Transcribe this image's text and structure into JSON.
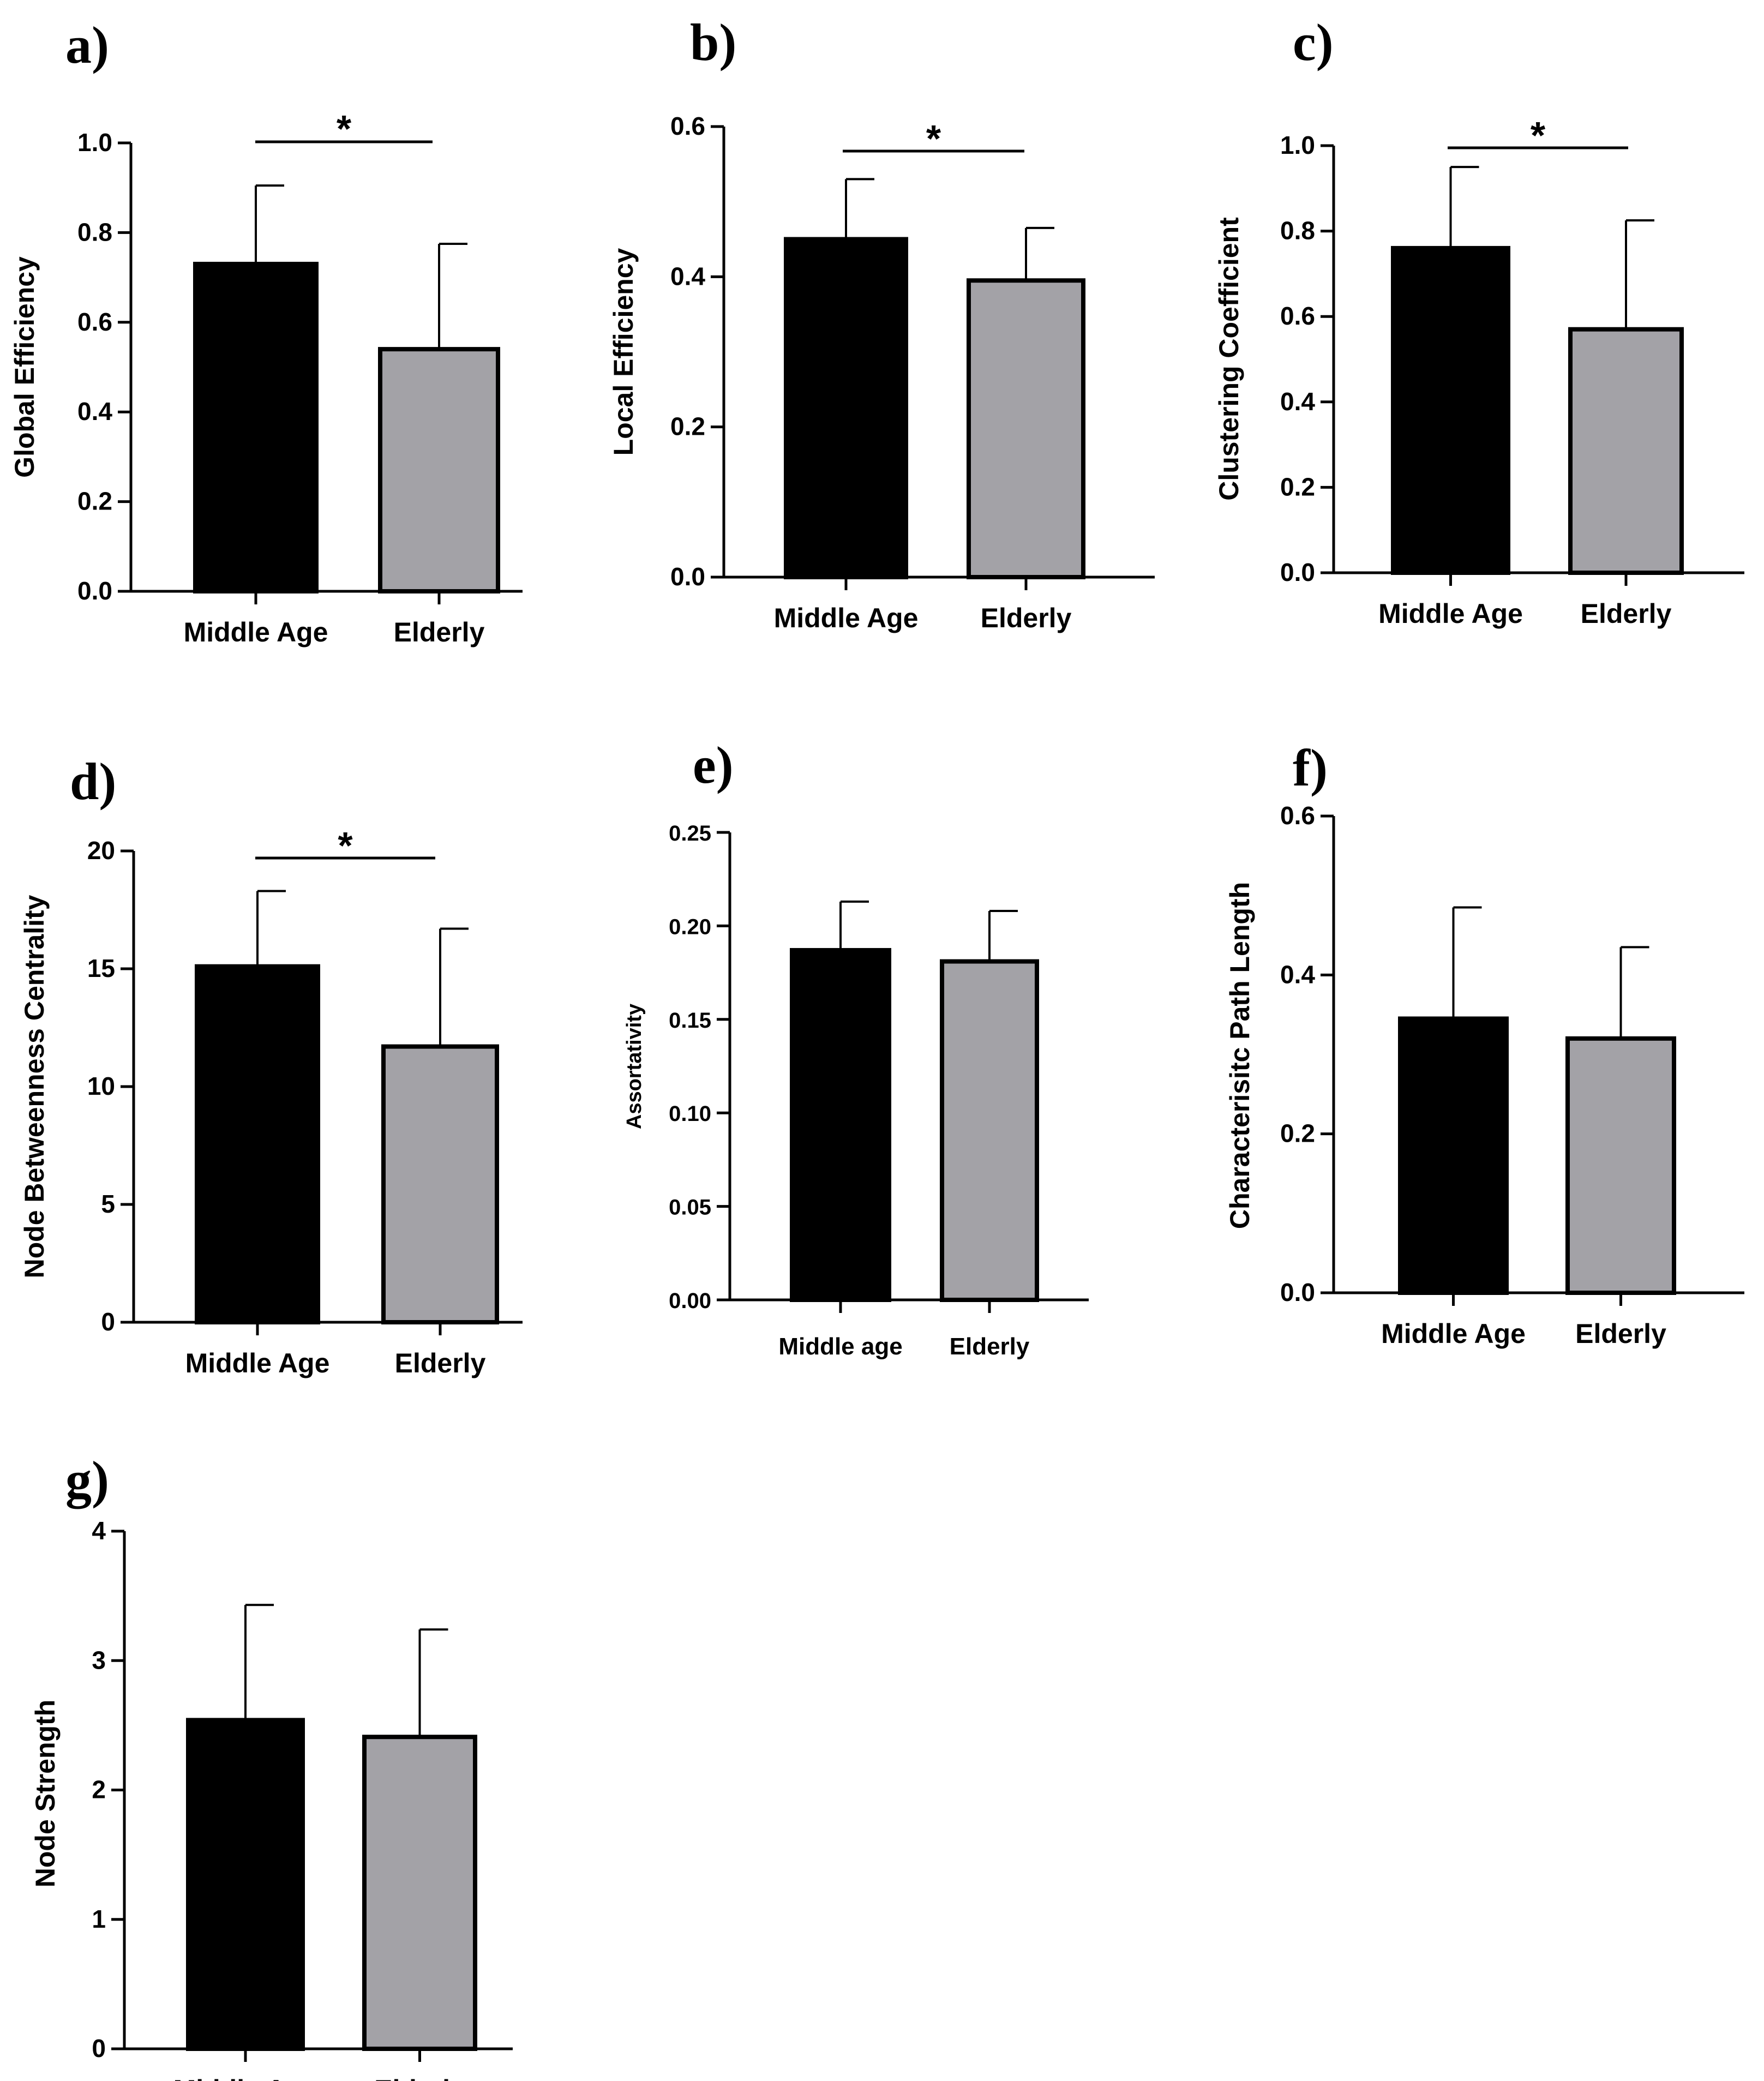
{
  "figure": {
    "colors": {
      "middle_age": "#000000",
      "elderly": "#a3a2a7",
      "axis": "#000000"
    }
  },
  "chart_data": [
    {
      "panel": "a)",
      "type": "bar",
      "ylabel": "Global Efficiency",
      "categories": [
        "Middle Age",
        "Elderly"
      ],
      "values": [
        0.73,
        0.54
      ],
      "errors": [
        0.175,
        0.235
      ],
      "ylim": [
        0,
        1.0
      ],
      "yticks": [
        0.0,
        0.2,
        0.4,
        0.6,
        0.8,
        1.0
      ],
      "tick_labels": [
        "0.0",
        "0.2",
        "0.4",
        "0.6",
        "0.8",
        "1.0"
      ],
      "significance": "*"
    },
    {
      "panel": "b)",
      "type": "bar",
      "ylabel": "Local Efficiency",
      "categories": [
        "Middle Age",
        "Elderly"
      ],
      "values": [
        0.45,
        0.395
      ],
      "errors": [
        0.08,
        0.07
      ],
      "ylim": [
        0,
        0.6
      ],
      "yticks": [
        0.0,
        0.2,
        0.4,
        0.6
      ],
      "tick_labels": [
        "0.0",
        "0.2",
        "0.4",
        "0.6"
      ],
      "significance": "*"
    },
    {
      "panel": "c)",
      "type": "bar",
      "ylabel": "Clustering Coefficient",
      "categories": [
        "Middle Age",
        "Elderly"
      ],
      "values": [
        0.76,
        0.57
      ],
      "errors": [
        0.19,
        0.255
      ],
      "ylim": [
        0,
        1.0
      ],
      "yticks": [
        0.0,
        0.2,
        0.4,
        0.6,
        0.8,
        1.0
      ],
      "tick_labels": [
        "0.0",
        "0.2",
        "0.4",
        "0.6",
        "0.8",
        "1.0"
      ],
      "significance": "*"
    },
    {
      "panel": "d)",
      "type": "bar",
      "ylabel": "Node Betweenness Centrality",
      "categories": [
        "Middle Age",
        "Elderly"
      ],
      "values": [
        15.1,
        11.7
      ],
      "errors": [
        3.2,
        5.0
      ],
      "ylim": [
        0,
        20
      ],
      "yticks": [
        0,
        5,
        10,
        15,
        20
      ],
      "tick_labels": [
        "0",
        "5",
        "10",
        "15",
        "20"
      ],
      "significance": "*"
    },
    {
      "panel": "e)",
      "type": "bar",
      "ylabel": "Assortativity",
      "categories": [
        "Middle age",
        "Elderly"
      ],
      "values": [
        0.187,
        0.181
      ],
      "errors": [
        0.026,
        0.027
      ],
      "ylim": [
        0,
        0.25
      ],
      "yticks": [
        0.0,
        0.05,
        0.1,
        0.15,
        0.2,
        0.25
      ],
      "tick_labels": [
        "0.00",
        "0.05",
        "0.10",
        "0.15",
        "0.20",
        "0.25"
      ],
      "significance": ""
    },
    {
      "panel": "f)",
      "type": "bar",
      "ylabel": "Characterisitc Path Length",
      "categories": [
        "Middle Age",
        "Elderly"
      ],
      "values": [
        0.345,
        0.32
      ],
      "errors": [
        0.14,
        0.115
      ],
      "ylim": [
        0,
        0.6
      ],
      "yticks": [
        0.0,
        0.2,
        0.4,
        0.6
      ],
      "tick_labels": [
        "0.0",
        "0.2",
        "0.4",
        "0.6"
      ],
      "significance": ""
    },
    {
      "panel": "g)",
      "type": "bar",
      "ylabel": "Node Strength",
      "categories": [
        "Middle Age",
        "Elderly"
      ],
      "values": [
        2.54,
        2.41
      ],
      "errors": [
        0.89,
        0.83
      ],
      "ylim": [
        0,
        4
      ],
      "yticks": [
        0,
        1,
        2,
        3,
        4
      ],
      "tick_labels": [
        "0",
        "1",
        "2",
        "3",
        "4"
      ],
      "significance": ""
    }
  ]
}
